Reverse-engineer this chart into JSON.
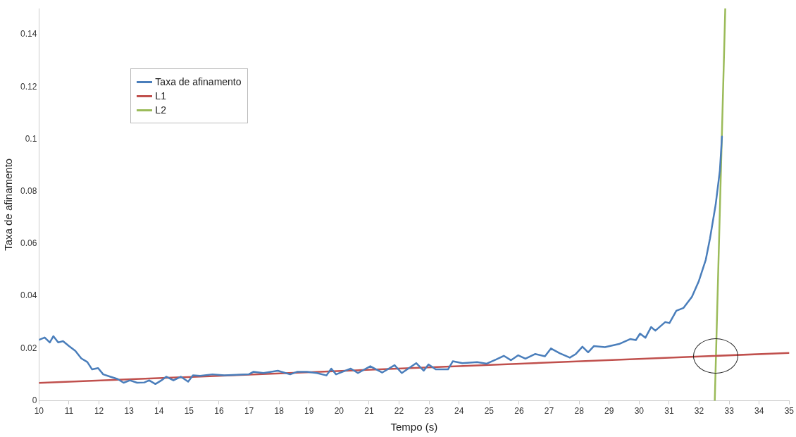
{
  "chart_data": {
    "type": "line",
    "xlabel": "Tempo (s)",
    "ylabel": "Taxa de afinamento",
    "xlim": [
      10,
      35
    ],
    "xticks": [
      10,
      11,
      12,
      13,
      14,
      15,
      16,
      17,
      18,
      19,
      20,
      21,
      22,
      23,
      24,
      25,
      26,
      27,
      28,
      29,
      30,
      31,
      32,
      33,
      34,
      35
    ],
    "ylim": [
      0,
      0.15
    ],
    "yticks": [
      0,
      0.02,
      0.04,
      0.06,
      0.08,
      0.1,
      0.12,
      0.14
    ],
    "grid": false,
    "legend": "top left",
    "marker": "none",
    "line_style": "solid",
    "series": [
      {
        "name": "Taxa de afinamento",
        "color": "#4a7ebb",
        "x": [
          10.0,
          10.19,
          10.36,
          10.48,
          10.64,
          10.8,
          11.0,
          11.21,
          11.41,
          11.61,
          11.77,
          11.97,
          12.14,
          12.38,
          12.62,
          12.82,
          13.03,
          13.27,
          13.51,
          13.67,
          13.88,
          14.08,
          14.24,
          14.48,
          14.73,
          14.97,
          15.13,
          15.37,
          15.78,
          16.18,
          16.59,
          16.99,
          17.15,
          17.48,
          17.96,
          18.37,
          18.61,
          18.93,
          19.26,
          19.58,
          19.74,
          19.9,
          20.39,
          20.63,
          21.04,
          21.44,
          21.85,
          22.09,
          22.57,
          22.82,
          22.98,
          23.22,
          23.63,
          23.79,
          24.11,
          24.6,
          24.92,
          25.24,
          25.49,
          25.73,
          25.97,
          26.21,
          26.54,
          26.86,
          27.06,
          27.35,
          27.69,
          27.88,
          28.11,
          28.3,
          28.49,
          28.86,
          29.33,
          29.7,
          29.89,
          30.03,
          30.21,
          30.4,
          30.54,
          30.87,
          31.01,
          31.24,
          31.48,
          31.76,
          31.99,
          32.22,
          32.36,
          32.55,
          32.69,
          32.76
        ],
        "values": [
          0.0233,
          0.0242,
          0.0223,
          0.0247,
          0.0223,
          0.0228,
          0.0209,
          0.0191,
          0.0162,
          0.0148,
          0.012,
          0.0125,
          0.0101,
          0.0092,
          0.0083,
          0.0069,
          0.0078,
          0.0069,
          0.007,
          0.0078,
          0.0064,
          0.0078,
          0.0092,
          0.0078,
          0.0092,
          0.0073,
          0.0097,
          0.0095,
          0.0101,
          0.0097,
          0.0099,
          0.0101,
          0.0111,
          0.0106,
          0.0115,
          0.0101,
          0.0111,
          0.0111,
          0.0106,
          0.0097,
          0.0123,
          0.0101,
          0.0123,
          0.0106,
          0.0132,
          0.0108,
          0.0136,
          0.0106,
          0.0144,
          0.0115,
          0.0139,
          0.012,
          0.012,
          0.0151,
          0.0144,
          0.0148,
          0.0142,
          0.0158,
          0.0172,
          0.0155,
          0.0174,
          0.0161,
          0.0179,
          0.017,
          0.02,
          0.0182,
          0.0165,
          0.0178,
          0.0207,
          0.0185,
          0.0209,
          0.0205,
          0.0217,
          0.0236,
          0.0232,
          0.0257,
          0.0241,
          0.0282,
          0.0268,
          0.0301,
          0.0297,
          0.0344,
          0.0355,
          0.0398,
          0.0458,
          0.0539,
          0.062,
          0.075,
          0.088,
          0.101
        ]
      },
      {
        "name": "L1",
        "color": "#c0504d",
        "x": [
          10,
          35
        ],
        "values": [
          0.0068,
          0.0183
        ]
      },
      {
        "name": "L2",
        "color": "#9bbb59",
        "x": [
          32.52,
          32.87
        ],
        "values": [
          0,
          0.15
        ]
      }
    ]
  }
}
